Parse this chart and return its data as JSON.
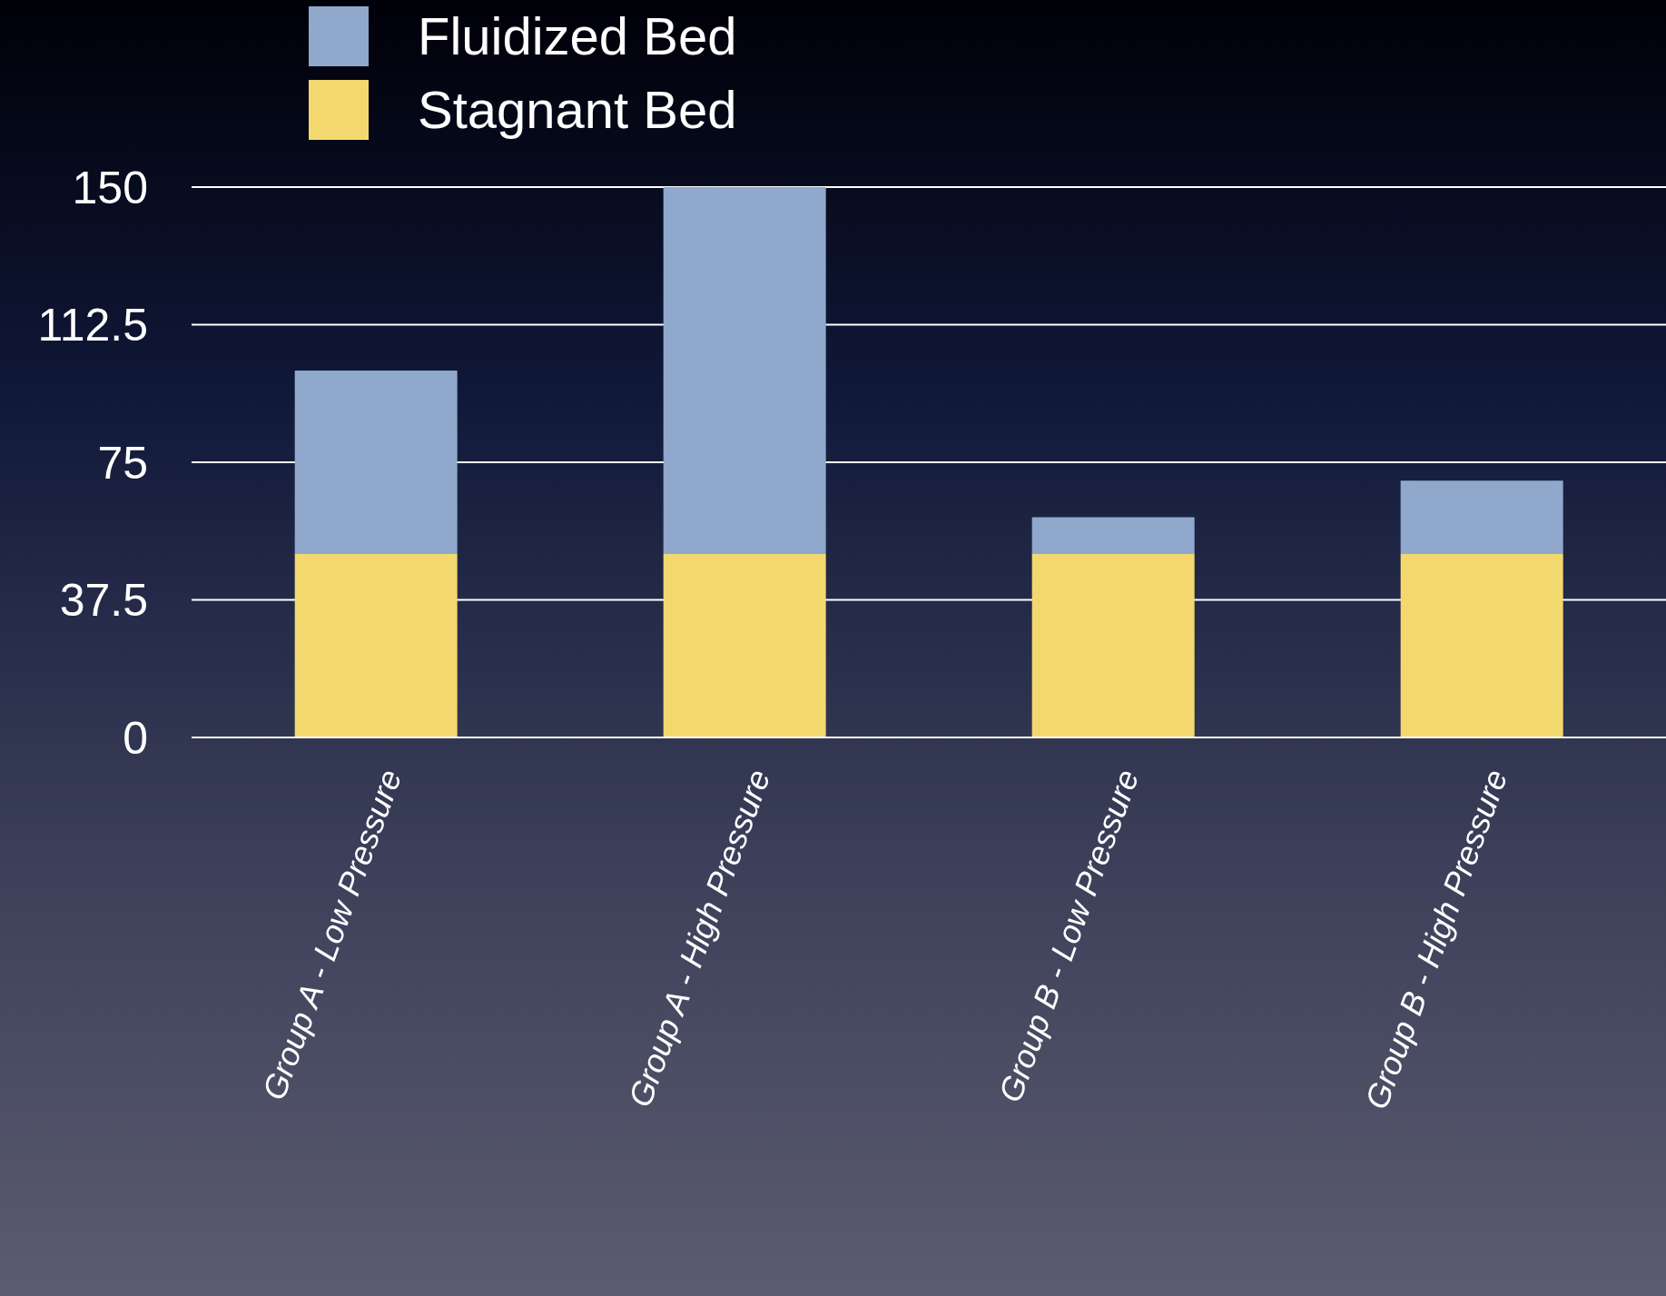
{
  "chart_data": {
    "type": "bar",
    "stacked": true,
    "categories": [
      "Group A - Low Pressure",
      "Group A - High Pressure",
      "Group B - Low Pressure",
      "Group B - High Pressure"
    ],
    "series": [
      {
        "name": "Stagnant Bed",
        "color": "#f3d870",
        "values": [
          50,
          50,
          50,
          50
        ]
      },
      {
        "name": "Fluidized Bed",
        "color": "#8fa8cc",
        "values": [
          50,
          100,
          10,
          20
        ]
      }
    ],
    "ylim": [
      0,
      150
    ],
    "yticks": [
      0,
      37.5,
      75,
      112.5,
      150
    ],
    "grid": "y",
    "legend": "top left"
  }
}
